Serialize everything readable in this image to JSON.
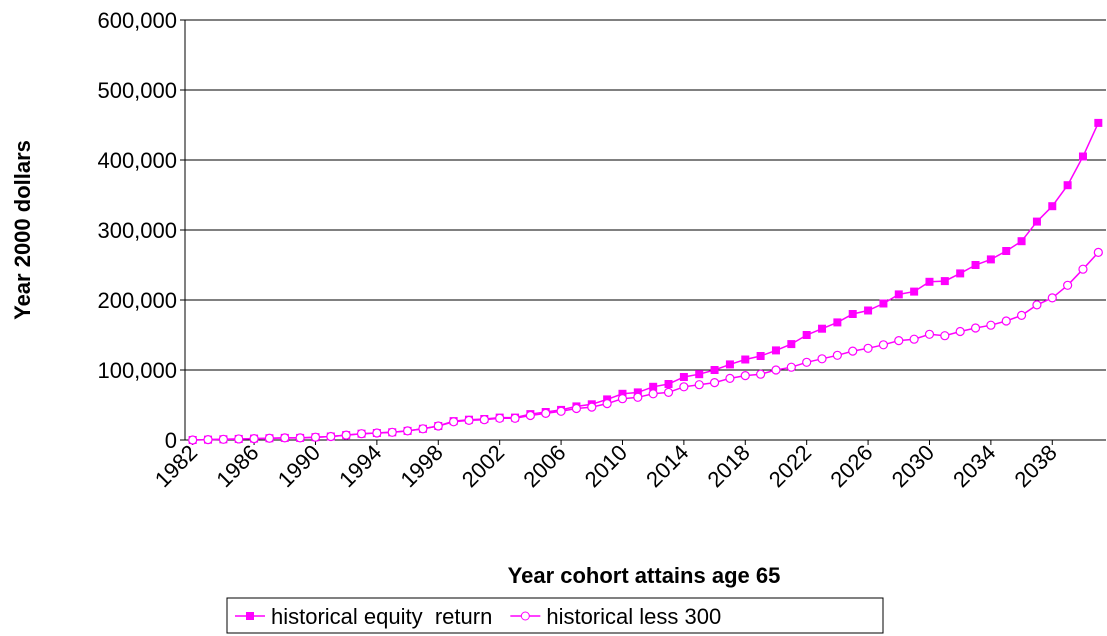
{
  "chart_data": {
    "type": "line",
    "x_label": "Year cohort attains age 65",
    "y_label": "Year 2000 dollars",
    "x": [
      1982,
      1983,
      1984,
      1985,
      1986,
      1987,
      1988,
      1989,
      1990,
      1991,
      1992,
      1993,
      1994,
      1995,
      1996,
      1997,
      1998,
      1999,
      2000,
      2001,
      2002,
      2003,
      2004,
      2005,
      2006,
      2007,
      2008,
      2009,
      2010,
      2011,
      2012,
      2013,
      2014,
      2015,
      2016,
      2017,
      2018,
      2019,
      2020,
      2021,
      2022,
      2023,
      2024,
      2025,
      2026,
      2027,
      2028,
      2029,
      2030,
      2031,
      2032,
      2033,
      2034,
      2035,
      2036,
      2037,
      2038,
      2039,
      2040,
      2041
    ],
    "series": [
      {
        "name": "historical equity  return",
        "color": "#ff00ff",
        "marker": "square",
        "values": [
          0,
          500,
          1000,
          1500,
          2000,
          2500,
          3000,
          3000,
          4000,
          5000,
          7000,
          9000,
          10000,
          11000,
          13000,
          16000,
          20000,
          27000,
          29000,
          30000,
          32000,
          32000,
          37000,
          40000,
          43000,
          48000,
          51000,
          58000,
          66000,
          68000,
          76000,
          80000,
          90000,
          94000,
          100000,
          108000,
          115000,
          120000,
          128000,
          137000,
          150000,
          159000,
          168000,
          180000,
          185000,
          195000,
          208000,
          212000,
          226000,
          227000,
          238000,
          250000,
          258000,
          270000,
          284000,
          312000,
          334000,
          364000,
          405000,
          453000
        ]
      },
      {
        "name": "historical less 300",
        "color": "#ff00ff",
        "marker": "circle",
        "values": [
          0,
          500,
          1000,
          1500,
          2000,
          2500,
          3000,
          3000,
          4000,
          5000,
          7000,
          9000,
          10000,
          11000,
          13000,
          16000,
          20000,
          26000,
          28000,
          29000,
          31000,
          31000,
          35000,
          38000,
          41000,
          45000,
          47000,
          52000,
          59000,
          61000,
          66000,
          68000,
          76000,
          79000,
          82000,
          88000,
          92000,
          94000,
          100000,
          104000,
          111000,
          116000,
          121000,
          127000,
          131000,
          136000,
          142000,
          144000,
          151000,
          149000,
          155000,
          160000,
          164000,
          170000,
          178000,
          193000,
          203000,
          221000,
          244000,
          268000
        ]
      }
    ],
    "xlim": [
      1981.5,
      2041.5
    ],
    "xticks": [
      1982,
      1986,
      1990,
      1994,
      1998,
      2002,
      2006,
      2010,
      2014,
      2018,
      2022,
      2026,
      2030,
      2034,
      2038
    ],
    "ylim": [
      0,
      600000
    ],
    "yticks": [
      0,
      {
        "value": 100000,
        "label": "100,000"
      },
      {
        "value": 200000,
        "label": "200,000"
      },
      {
        "value": 300000,
        "label": "300,000"
      },
      {
        "value": 400000,
        "label": "400,000"
      },
      {
        "value": 500000,
        "label": "500,000"
      },
      {
        "value": 600000,
        "label": "600,000"
      }
    ],
    "grid": true,
    "legend": "bottom"
  }
}
